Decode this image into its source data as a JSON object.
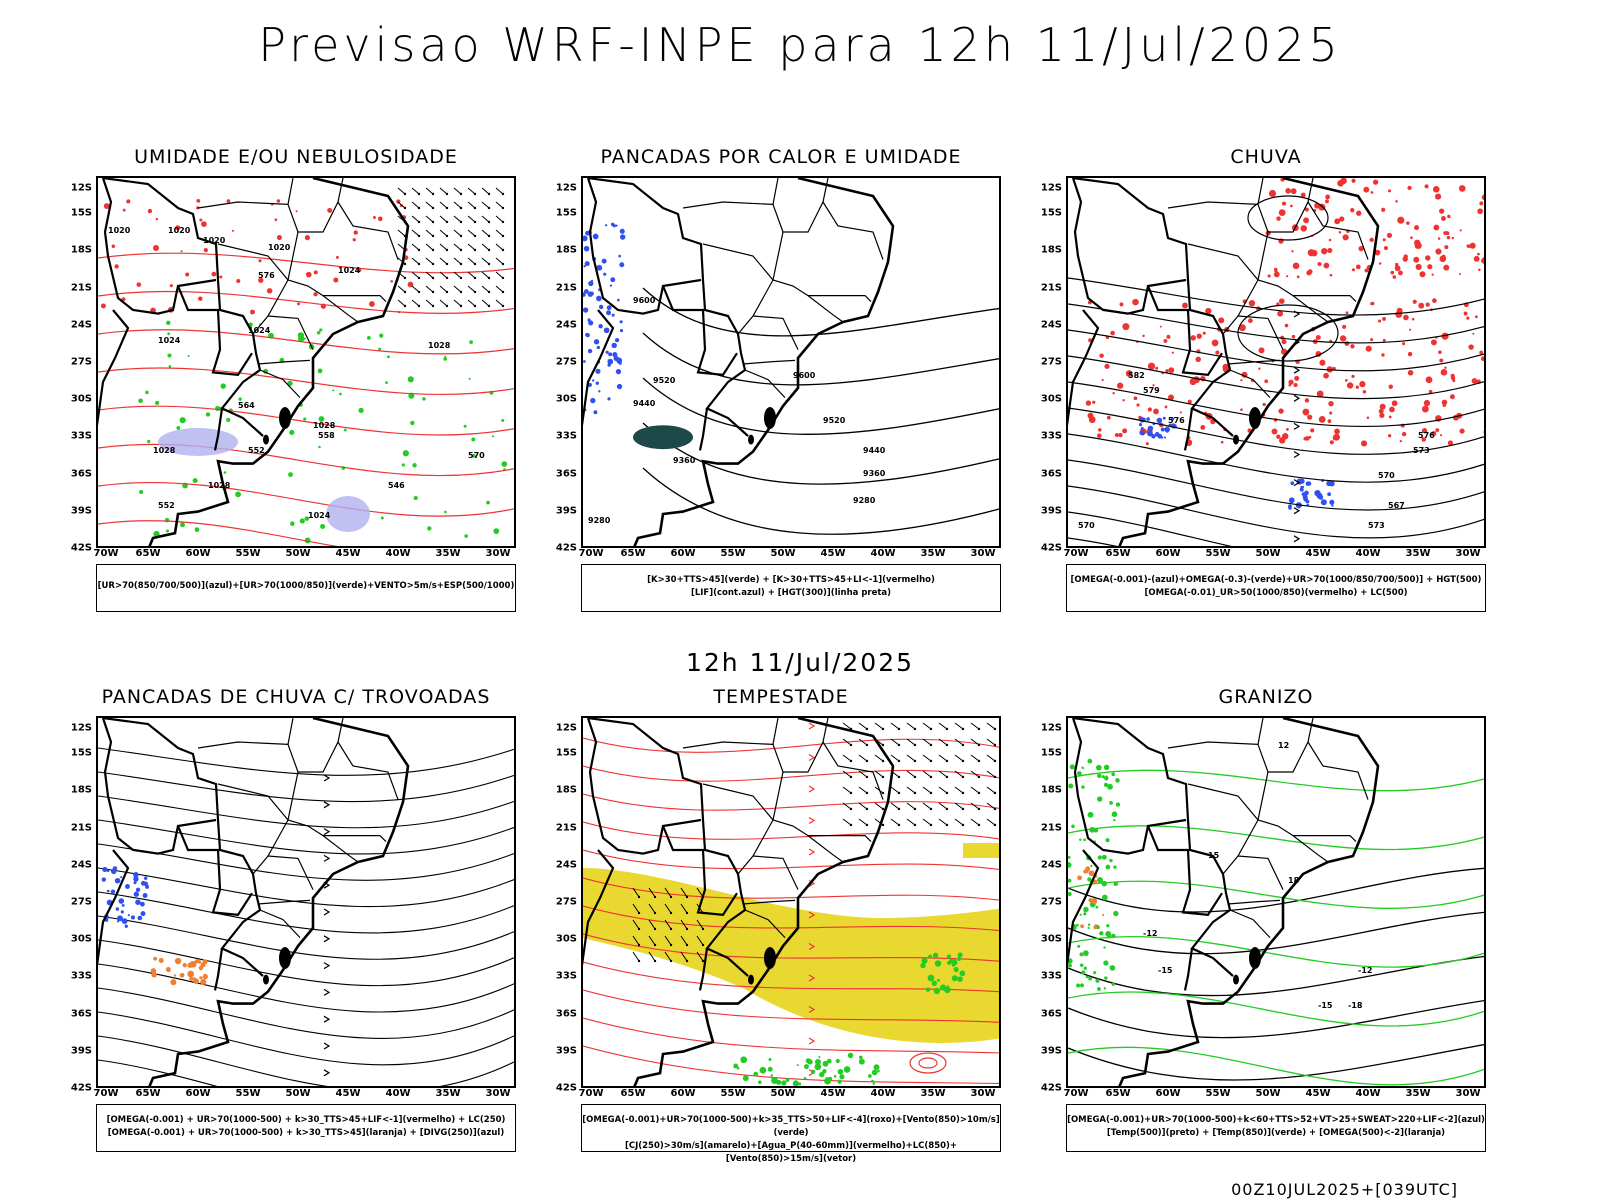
{
  "title": "Previsao WRF-INPE  para 12h 11/Jul/2025",
  "mid_title": "12h 11/Jul/2025",
  "footer": "00Z10JUL2025+[039UTC]",
  "lat_ticks": [
    "12S",
    "15S",
    "18S",
    "21S",
    "24S",
    "27S",
    "30S",
    "33S",
    "36S",
    "39S",
    "42S"
  ],
  "lon_ticks": [
    "70W",
    "65W",
    "60W",
    "55W",
    "50W",
    "45W",
    "40W",
    "35W",
    "30W"
  ],
  "panels": [
    {
      "title": "UMIDADE E/OU NEBULOSIDADE",
      "caption_lines": [
        "[UR>70(850/700/500)](azul)+[UR>70(1000/850)](verde)+VENTO>5m/s+ESP(500/1000)"
      ],
      "labels": [
        "1020",
        "1020",
        "1020",
        "1020",
        "1024",
        "1024",
        "1024",
        "1028",
        "1028",
        "1028",
        "1028",
        "1024",
        "570",
        "576",
        "564",
        "558",
        "552",
        "546",
        "552"
      ]
    },
    {
      "title": "PANCADAS POR CALOR E UMIDADE",
      "caption_lines": [
        "[K>30+TTS>45](verde) + [K>30+TTS>45+LI<-1](vermelho)",
        "[LIF](cont.azul) + [HGT(300)](linha preta)"
      ],
      "labels": [
        "9600",
        "9520",
        "9440",
        "9360",
        "9280",
        "9600",
        "9520",
        "9440",
        "9360",
        "9280"
      ]
    },
    {
      "title": "CHUVA",
      "caption_lines": [
        "[OMEGA(-0.001)-(azul)+OMEGA(-0.3)-(verde)+UR>70(1000/850/700/500)] + HGT(500)",
        "[OMEGA(-0.01)_UR>50(1000/850)(vermelho) + LC(500)"
      ],
      "labels": [
        "582",
        "579",
        "576",
        "573",
        "570",
        "567",
        "573",
        "570",
        "576"
      ]
    },
    {
      "title": "PANCADAS DE CHUVA C/ TROVOADAS",
      "caption_lines": [
        "[OMEGA(-0.001) + UR>70(1000-500) + k>30_TTS>45+LIF<-1](vermelho) + LC(250)",
        "[OMEGA(-0.001) + UR>70(1000-500) + k>30_TTS>45](laranja) + [DIVG(250)](azul)"
      ],
      "labels": []
    },
    {
      "title": "TEMPESTADE",
      "caption_lines": [
        "[OMEGA(-0.001)+UR>70(1000-500)+k>35_TTS>50+LIF<-4](roxo)+[Vento(850)>10m/s](verde)",
        "[CJ(250)>30m/s](amarelo)+[Agua_P(40-60mm)](vermelho)+LC(850)+[Vento(850)>15m/s](vetor)"
      ],
      "labels": []
    },
    {
      "title": "GRANIZO",
      "caption_lines": [
        "[OMEGA(-0.001)+UR>70(1000-500)+k<60+TTS>52+VT>25+SWEAT>220+LIF<-2](azul)",
        "[Temp(500)](preto) + [Temp(850)](verde) + [OMEGA(500)<-2](laranja)"
      ],
      "labels": [
        "-12",
        "-15",
        "-18",
        "-21",
        "12",
        "15",
        "18",
        "-12",
        "-15"
      ]
    }
  ],
  "colors": {
    "blue": "#3050f0",
    "green": "#22cc22",
    "red": "#ee3333",
    "orange": "#f08030",
    "yellow": "#e8d830",
    "darkteal": "#1d4a48",
    "lavender": "#b0b0f0"
  }
}
